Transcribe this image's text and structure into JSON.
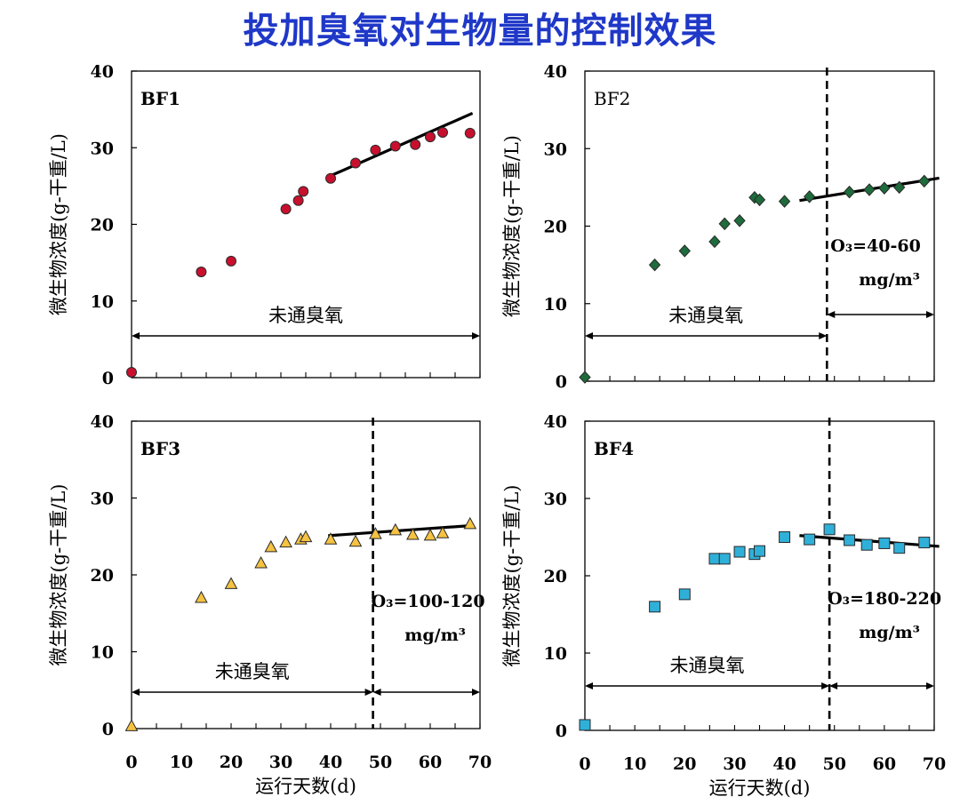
{
  "title": "投加臭氧对生物量的控制效果",
  "title_color": "#1f38c8",
  "chart_data": [
    {
      "type": "scatter",
      "panel": "BF1",
      "label": "BF1",
      "ylabel": "微生物浓度(g-干重/L)",
      "xlabel": "",
      "xlim": [
        0,
        70
      ],
      "ylim": [
        0,
        40
      ],
      "x_ticks": [],
      "y_ticks": [
        "0",
        "10",
        "20",
        "30",
        "40"
      ],
      "marker": "circle",
      "color": "#c8102e",
      "points": [
        [
          0,
          0.7
        ],
        [
          14,
          13.8
        ],
        [
          20,
          15.2
        ],
        [
          31,
          22.0
        ],
        [
          33.5,
          23.1
        ],
        [
          34.5,
          24.3
        ],
        [
          40,
          26.0
        ],
        [
          45,
          28.0
        ],
        [
          49,
          29.7
        ],
        [
          53,
          30.2
        ],
        [
          57,
          30.4
        ],
        [
          60,
          31.4
        ],
        [
          62.5,
          32.0
        ],
        [
          68,
          31.9
        ]
      ],
      "trend": [
        [
          39.5,
          26.2
        ],
        [
          68.5,
          34.5
        ]
      ],
      "no_ozone_label": "未通臭氧",
      "ozone_label": "",
      "ozone_unit": "",
      "ozone_start": null
    },
    {
      "type": "scatter",
      "panel": "BF2",
      "label": "BF2",
      "ylabel": "微生物浓度(g-干重/L)",
      "xlabel": "",
      "xlim": [
        0,
        70
      ],
      "ylim": [
        0,
        40
      ],
      "x_ticks": [],
      "y_ticks": [
        "0",
        "10",
        "20",
        "30",
        "40"
      ],
      "marker": "diamond",
      "color": "#1e6b3c",
      "points": [
        [
          0,
          0.5
        ],
        [
          14,
          15.0
        ],
        [
          20,
          16.8
        ],
        [
          26,
          18.0
        ],
        [
          28,
          20.3
        ],
        [
          31,
          20.7
        ],
        [
          34,
          23.7
        ],
        [
          35,
          23.4
        ],
        [
          40,
          23.2
        ],
        [
          45,
          23.8
        ],
        [
          53,
          24.4
        ],
        [
          57,
          24.7
        ],
        [
          60,
          24.9
        ],
        [
          63,
          25.0
        ],
        [
          68,
          25.8
        ]
      ],
      "trend": [
        [
          43,
          23.3
        ],
        [
          71,
          26.2
        ]
      ],
      "no_ozone_label": "未通臭氧",
      "ozone_label": "O₃=40-60",
      "ozone_unit": "mg/m³",
      "ozone_start": 48.5
    },
    {
      "type": "scatter",
      "panel": "BF3",
      "label": "BF3",
      "ylabel": "微生物浓度(g-干重/L)",
      "xlabel": "运行天数(d)",
      "xlim": [
        0,
        70
      ],
      "ylim": [
        0,
        40
      ],
      "x_ticks": [
        "0",
        "10",
        "20",
        "30",
        "40",
        "50",
        "60",
        "70"
      ],
      "y_ticks": [
        "0",
        "10",
        "20",
        "30",
        "40"
      ],
      "marker": "triangle",
      "color": "#f5c242",
      "points": [
        [
          0,
          0.3
        ],
        [
          14,
          17.0
        ],
        [
          20,
          18.8
        ],
        [
          26,
          21.5
        ],
        [
          28,
          23.6
        ],
        [
          31,
          24.2
        ],
        [
          34,
          24.6
        ],
        [
          35,
          24.9
        ],
        [
          40,
          24.6
        ],
        [
          45,
          24.3
        ],
        [
          49,
          25.3
        ],
        [
          53,
          25.8
        ],
        [
          56.5,
          25.2
        ],
        [
          60,
          25.1
        ],
        [
          62.5,
          25.4
        ],
        [
          68,
          26.6
        ]
      ],
      "trend": [
        [
          39.5,
          25.1
        ],
        [
          68,
          26.4
        ]
      ],
      "no_ozone_label": "未通臭氧",
      "ozone_label": "O₃=100-120",
      "ozone_unit": "mg/m³",
      "ozone_start": 48.5
    },
    {
      "type": "scatter",
      "panel": "BF4",
      "label": "BF4",
      "ylabel": "微生物浓度(g-干重/L)",
      "xlabel": "运行天数(d)",
      "xlim": [
        0,
        70
      ],
      "ylim": [
        0,
        40
      ],
      "x_ticks": [
        "0",
        "10",
        "20",
        "30",
        "40",
        "50",
        "60",
        "70"
      ],
      "y_ticks": [
        "0",
        "10",
        "20",
        "30",
        "40"
      ],
      "marker": "square",
      "color": "#2fb0d9",
      "points": [
        [
          0,
          0.7
        ],
        [
          14,
          16.0
        ],
        [
          20,
          17.6
        ],
        [
          26,
          22.2
        ],
        [
          28,
          22.2
        ],
        [
          31,
          23.1
        ],
        [
          34,
          22.8
        ],
        [
          35,
          23.2
        ],
        [
          40,
          25.0
        ],
        [
          45,
          24.7
        ],
        [
          49,
          26.0
        ],
        [
          53,
          24.6
        ],
        [
          56.5,
          24.0
        ],
        [
          60,
          24.2
        ],
        [
          63,
          23.6
        ],
        [
          68,
          24.3
        ]
      ],
      "trend": [
        [
          43,
          25.2
        ],
        [
          71,
          23.8
        ]
      ],
      "no_ozone_label": "未通臭氧",
      "ozone_label": "O₃=180-220",
      "ozone_unit": "mg/m³",
      "ozone_start": 49
    }
  ]
}
